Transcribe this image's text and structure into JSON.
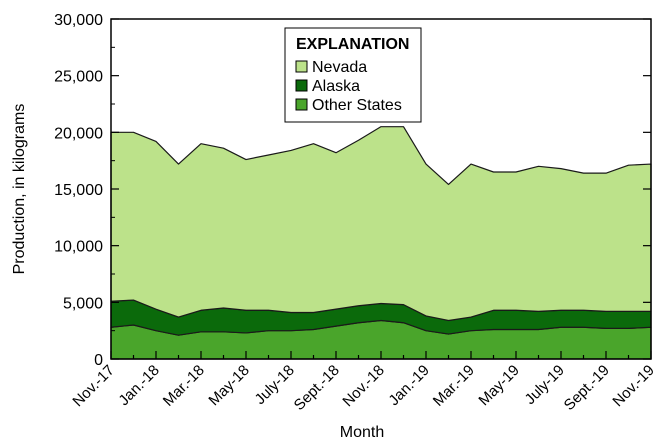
{
  "chart_data": {
    "type": "area",
    "stacked": true,
    "title": "",
    "xlabel": "Month",
    "ylabel": "Production, in kilograms",
    "ylim": [
      0,
      30000
    ],
    "y_ticks": [
      "0",
      "5,000",
      "10,000",
      "15,000",
      "20,000",
      "25,000",
      "30,000"
    ],
    "y_tick_values": [
      0,
      5000,
      10000,
      15000,
      20000,
      25000,
      30000
    ],
    "x": [
      "Nov.-17",
      "Dec.-17",
      "Jan.-18",
      "Feb.-18",
      "Mar.-18",
      "Apr.-18",
      "May-18",
      "June-18",
      "July-18",
      "Aug.-18",
      "Sept.-18",
      "Oct.-18",
      "Nov.-18",
      "Dec.-18",
      "Jan.-19",
      "Feb.-19",
      "Mar.-19",
      "Apr.-19",
      "May-19",
      "June-19",
      "July-19",
      "Aug.-19",
      "Sept.-19",
      "Oct.-19",
      "Nov.-19"
    ],
    "x_tick_labels": [
      "Nov.-17",
      "Jan.-18",
      "Mar.-18",
      "May-18",
      "July-18",
      "Sept.-18",
      "Nov.-18",
      "Jan.-19",
      "Mar.-19",
      "May-19",
      "July-19",
      "Sept.-19",
      "Nov.-19"
    ],
    "grid": false,
    "legend_position": "top-center",
    "legend_title": "EXPLANATION",
    "legend": [
      "Nevada",
      "Alaska",
      "Other States"
    ],
    "series": [
      {
        "name": "Other States",
        "color": "#4aa52b",
        "values": [
          2800,
          3000,
          2500,
          2100,
          2400,
          2400,
          2300,
          2500,
          2500,
          2600,
          2900,
          3200,
          3400,
          3200,
          2500,
          2200,
          2500,
          2600,
          2600,
          2600,
          2800,
          2800,
          2700,
          2700,
          2800
        ]
      },
      {
        "name": "Alaska",
        "color": "#0b6a0b",
        "values": [
          2300,
          2200,
          1900,
          1600,
          1900,
          2100,
          2000,
          1800,
          1600,
          1500,
          1500,
          1500,
          1500,
          1600,
          1300,
          1200,
          1200,
          1700,
          1700,
          1600,
          1500,
          1500,
          1500,
          1500,
          1400
        ]
      },
      {
        "name": "Nevada",
        "color": "#bce28a",
        "values": [
          14900,
          14800,
          14800,
          13500,
          14700,
          14100,
          13300,
          13700,
          14300,
          14900,
          13800,
          14600,
          15600,
          15700,
          13400,
          12000,
          13500,
          12200,
          12200,
          12800,
          12500,
          12100,
          12200,
          12900,
          13000
        ]
      }
    ]
  }
}
